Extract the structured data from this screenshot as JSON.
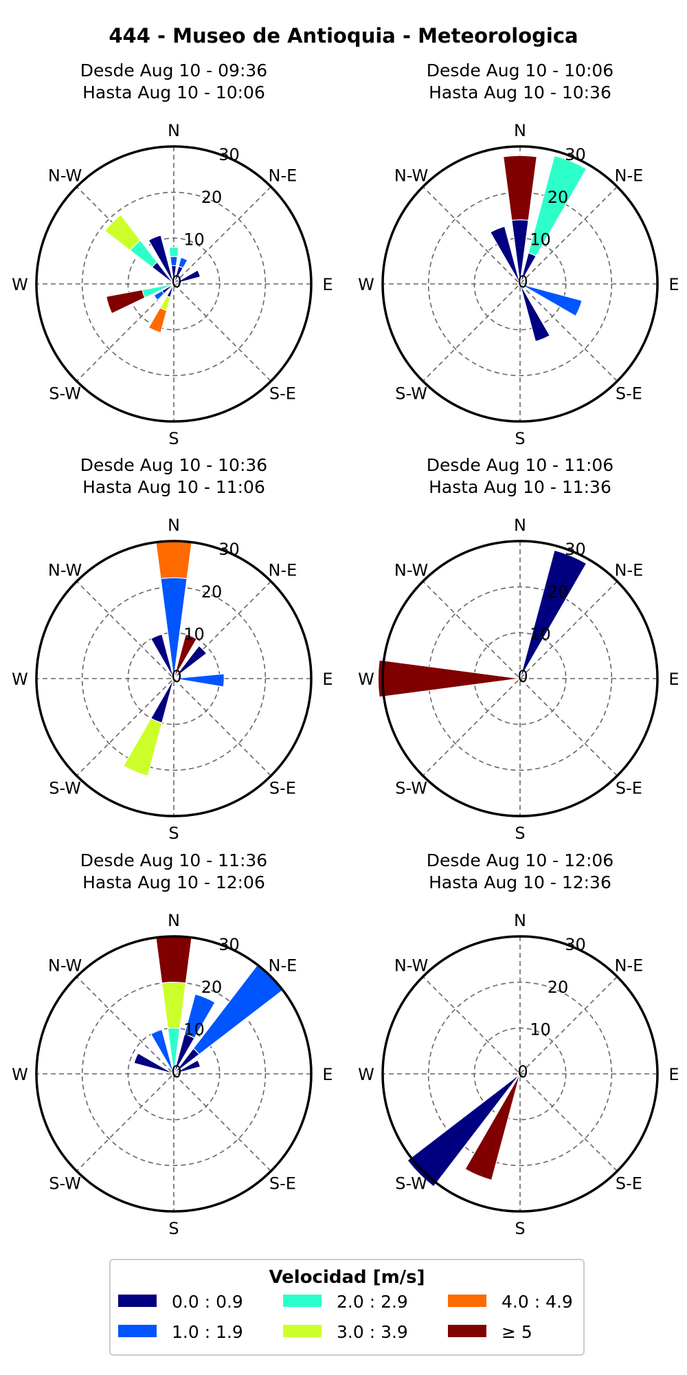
{
  "figure": {
    "title": "444 - Museo de Antioquia - Meteorologica"
  },
  "directions": {
    "n": "N",
    "ne": "N-E",
    "e": "E",
    "se": "S-E",
    "s": "S",
    "sw": "S-W",
    "w": "W",
    "nw": "N-W"
  },
  "legend": {
    "title": "Velocidad [m/s]",
    "items": [
      {
        "label": "0.0 : 0.9",
        "color": "#000080"
      },
      {
        "label": "1.0 : 1.9",
        "color": "#0055ff"
      },
      {
        "label": "2.0 : 2.9",
        "color": "#2dffca"
      },
      {
        "label": "3.0 : 3.9",
        "color": "#ccff2a"
      },
      {
        "label": "4.0 : 4.9",
        "color": "#ff6a00"
      },
      {
        "label": "≥  5",
        "color": "#800000"
      }
    ]
  },
  "chart_data": [
    {
      "type": "windrose",
      "subtitle": [
        "Desde Aug 10 - 09:36",
        "Hasta Aug 10 - 10:06"
      ],
      "rlim": [
        0,
        30
      ],
      "rticks": [
        "0",
        "10",
        "20",
        "30"
      ],
      "grid": true,
      "sectors": [
        {
          "direction_deg": 0,
          "segments": [
            {
              "bin": 0,
              "from": 0,
              "to": 4
            },
            {
              "bin": 1,
              "from": 4,
              "to": 6
            },
            {
              "bin": 2,
              "from": 6,
              "to": 8
            }
          ]
        },
        {
          "direction_deg": 22.5,
          "segments": [
            {
              "bin": 0,
              "from": 0,
              "to": 4
            },
            {
              "bin": 1,
              "from": 4,
              "to": 6
            }
          ]
        },
        {
          "direction_deg": 67.5,
          "segments": [
            {
              "bin": 0,
              "from": 0,
              "to": 6
            }
          ]
        },
        {
          "direction_deg": 202.5,
          "segments": [
            {
              "bin": 0,
              "from": 0,
              "to": 3
            },
            {
              "bin": 3,
              "from": 3,
              "to": 6
            },
            {
              "bin": 4,
              "from": 6,
              "to": 11
            }
          ]
        },
        {
          "direction_deg": 232.5,
          "segments": [
            {
              "bin": 0,
              "from": 0,
              "to": 3
            },
            {
              "bin": 1,
              "from": 3,
              "to": 5
            }
          ]
        },
        {
          "direction_deg": 252,
          "segments": [
            {
              "bin": 2,
              "from": 0,
              "to": 7
            },
            {
              "bin": 5,
              "from": 7,
              "to": 15
            }
          ]
        },
        {
          "direction_deg": 315,
          "segments": [
            {
              "bin": 0,
              "from": 0,
              "to": 6
            },
            {
              "bin": 2,
              "from": 6,
              "to": 12
            },
            {
              "bin": 3,
              "from": 12,
              "to": 19
            }
          ]
        },
        {
          "direction_deg": 337.5,
          "segments": [
            {
              "bin": 0,
              "from": 0,
              "to": 11
            }
          ]
        }
      ]
    },
    {
      "type": "windrose",
      "subtitle": [
        "Desde Aug 10 - 10:06",
        "Hasta Aug 10 - 10:36"
      ],
      "rlim": [
        0,
        30
      ],
      "rticks": [
        "0",
        "10",
        "20",
        "30"
      ],
      "grid": true,
      "sectors": [
        {
          "direction_deg": 0,
          "segments": [
            {
              "bin": 0,
              "from": 0,
              "to": 14
            },
            {
              "bin": 5,
              "from": 14,
              "to": 28
            }
          ]
        },
        {
          "direction_deg": 22.5,
          "segments": [
            {
              "bin": 0,
              "from": 0,
              "to": 7
            },
            {
              "bin": 2,
              "from": 7,
              "to": 29
            }
          ]
        },
        {
          "direction_deg": 112.5,
          "segments": [
            {
              "bin": 1,
              "from": 0,
              "to": 14
            }
          ]
        },
        {
          "direction_deg": 157.5,
          "segments": [
            {
              "bin": 0,
              "from": 0,
              "to": 13
            }
          ]
        },
        {
          "direction_deg": 337.5,
          "segments": [
            {
              "bin": 0,
              "from": 0,
              "to": 13
            }
          ]
        }
      ]
    },
    {
      "type": "windrose",
      "subtitle": [
        "Desde Aug 10 - 10:36",
        "Hasta Aug 10 - 11:06"
      ],
      "rlim": [
        0,
        30
      ],
      "rticks": [
        "0",
        "10",
        "20",
        "30"
      ],
      "grid": true,
      "sectors": [
        {
          "direction_deg": 0,
          "segments": [
            {
              "bin": 1,
              "from": 0,
              "to": 22
            },
            {
              "bin": 4,
              "from": 22,
              "to": 30
            }
          ]
        },
        {
          "direction_deg": 22.5,
          "segments": [
            {
              "bin": 5,
              "from": 0,
              "to": 10
            }
          ]
        },
        {
          "direction_deg": 45,
          "segments": [
            {
              "bin": 0,
              "from": 0,
              "to": 9
            }
          ]
        },
        {
          "direction_deg": 92,
          "segments": [
            {
              "bin": 1,
              "from": 0,
              "to": 11
            }
          ]
        },
        {
          "direction_deg": 202.5,
          "segments": [
            {
              "bin": 0,
              "from": 0,
              "to": 10
            },
            {
              "bin": 3,
              "from": 10,
              "to": 22
            }
          ]
        },
        {
          "direction_deg": 337.5,
          "segments": [
            {
              "bin": 0,
              "from": 0,
              "to": 10
            }
          ]
        }
      ]
    },
    {
      "type": "windrose",
      "subtitle": [
        "Desde Aug 10 - 11:06",
        "Hasta Aug 10 - 11:36"
      ],
      "rlim": [
        0,
        30
      ],
      "rticks": [
        "0",
        "10",
        "20",
        "30"
      ],
      "grid": true,
      "sectors": [
        {
          "direction_deg": 22.5,
          "segments": [
            {
              "bin": 0,
              "from": 0,
              "to": 29
            }
          ]
        },
        {
          "direction_deg": 270,
          "segments": [
            {
              "bin": 5,
              "from": 0,
              "to": 31
            }
          ]
        }
      ]
    },
    {
      "type": "windrose",
      "subtitle": [
        "Desde Aug 10 - 11:36",
        "Hasta Aug 10 - 12:06"
      ],
      "rlim": [
        0,
        30
      ],
      "rticks": [
        "0",
        "10",
        "20",
        "30"
      ],
      "grid": true,
      "sectors": [
        {
          "direction_deg": 0,
          "segments": [
            {
              "bin": 2,
              "from": 0,
              "to": 10
            },
            {
              "bin": 3,
              "from": 10,
              "to": 20
            },
            {
              "bin": 5,
              "from": 20,
              "to": 30
            }
          ]
        },
        {
          "direction_deg": 22.5,
          "segments": [
            {
              "bin": 0,
              "from": 0,
              "to": 9
            },
            {
              "bin": 1,
              "from": 9,
              "to": 18
            }
          ]
        },
        {
          "direction_deg": 45,
          "segments": [
            {
              "bin": 0,
              "from": 0,
              "to": 7
            },
            {
              "bin": 1,
              "from": 7,
              "to": 30
            }
          ]
        },
        {
          "direction_deg": 67.5,
          "segments": [
            {
              "bin": 0,
              "from": 0,
              "to": 6
            }
          ]
        },
        {
          "direction_deg": 292.5,
          "segments": [
            {
              "bin": 0,
              "from": 0,
              "to": 9
            }
          ]
        },
        {
          "direction_deg": 337.5,
          "segments": [
            {
              "bin": 1,
              "from": 0,
              "to": 10
            }
          ]
        }
      ]
    },
    {
      "type": "windrose",
      "subtitle": [
        "Desde Aug 10 - 12:06",
        "Hasta Aug 10 - 12:36"
      ],
      "rlim": [
        0,
        30
      ],
      "rticks": [
        "0",
        "10",
        "20",
        "30"
      ],
      "grid": true,
      "sectors": [
        {
          "direction_deg": 202.5,
          "segments": [
            {
              "bin": 5,
              "from": 0,
              "to": 24
            }
          ]
        },
        {
          "direction_deg": 225,
          "segments": [
            {
              "bin": 0,
              "from": 0,
              "to": 31
            }
          ]
        }
      ]
    }
  ]
}
